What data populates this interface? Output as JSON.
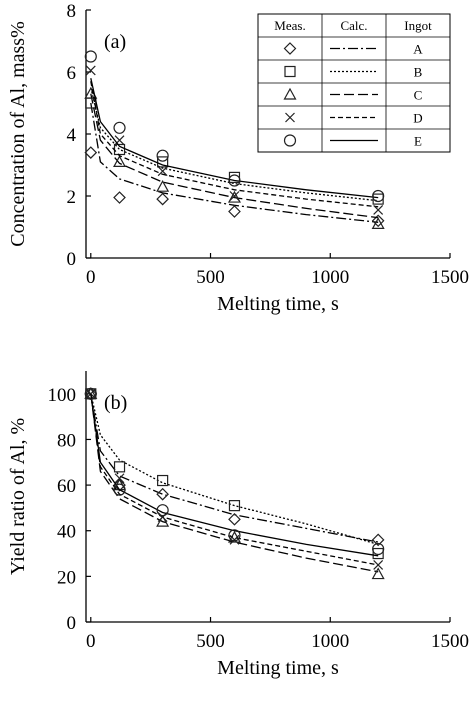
{
  "chart_data": [
    {
      "type": "scatter",
      "panel_label": "(a)",
      "xlabel": "Melting time, s",
      "ylabel": "Concentration of Al, mass%",
      "xlim": [
        -20,
        1500
      ],
      "ylim": [
        0,
        8
      ],
      "xticks": [
        "0",
        "500",
        "1000",
        "1500"
      ],
      "yticks": [
        "0",
        "2",
        "4",
        "6",
        "8"
      ],
      "grid": false,
      "legend": {
        "position": "top-right",
        "headers": [
          "Meas.",
          "Calc.",
          "Ingot"
        ],
        "rows": [
          {
            "marker": "diamond",
            "line": "dash-dot",
            "ingot": "A"
          },
          {
            "marker": "square",
            "line": "dotted",
            "ingot": "B"
          },
          {
            "marker": "triangle",
            "line": "long-dash",
            "ingot": "C"
          },
          {
            "marker": "cross",
            "line": "short-dash",
            "ingot": "D"
          },
          {
            "marker": "circle",
            "line": "solid",
            "ingot": "E"
          }
        ]
      },
      "series": [
        {
          "name": "A",
          "marker": "diamond",
          "line": "dash-dot",
          "measured": {
            "x": [
              0,
              120,
              300,
              600,
              1200
            ],
            "y": [
              3.4,
              1.95,
              1.9,
              1.5,
              1.2
            ]
          },
          "calculated": {
            "x": [
              0,
              40,
              120,
              300,
              600,
              900,
              1200
            ],
            "y": [
              5.0,
              3.1,
              2.55,
              2.1,
              1.7,
              1.4,
              1.15
            ]
          }
        },
        {
          "name": "B",
          "marker": "square",
          "line": "dotted",
          "measured": {
            "x": [
              0,
              120,
              300,
              600,
              1200
            ],
            "y": [
              5.0,
              3.5,
              3.1,
              2.6,
              1.9
            ]
          },
          "calculated": {
            "x": [
              0,
              40,
              120,
              300,
              600,
              900,
              1200
            ],
            "y": [
              5.5,
              4.2,
              3.5,
              2.9,
              2.4,
              2.1,
              1.85
            ]
          }
        },
        {
          "name": "C",
          "marker": "triangle",
          "line": "long-dash",
          "measured": {
            "x": [
              0,
              120,
              300,
              600,
              1200
            ],
            "y": [
              5.3,
              3.1,
              2.3,
              1.95,
              1.1
            ]
          },
          "calculated": {
            "x": [
              0,
              40,
              120,
              300,
              600,
              900,
              1200
            ],
            "y": [
              5.3,
              3.8,
              3.05,
              2.45,
              1.95,
              1.6,
              1.3
            ]
          }
        },
        {
          "name": "D",
          "marker": "cross",
          "line": "short-dash",
          "measured": {
            "x": [
              0,
              120,
              300,
              600,
              1200
            ],
            "y": [
              6.05,
              3.8,
              2.8,
              2.0,
              1.55
            ]
          },
          "calculated": {
            "x": [
              0,
              40,
              120,
              300,
              600,
              900,
              1200
            ],
            "y": [
              5.7,
              4.0,
              3.3,
              2.7,
              2.2,
              1.9,
              1.65
            ]
          }
        },
        {
          "name": "E",
          "marker": "circle",
          "line": "solid",
          "measured": {
            "x": [
              0,
              120,
              300,
              600,
              1200
            ],
            "y": [
              6.5,
              4.2,
              3.3,
              2.5,
              2.0
            ]
          },
          "calculated": {
            "x": [
              0,
              40,
              120,
              300,
              600,
              900,
              1200
            ],
            "y": [
              5.8,
              4.4,
              3.6,
              3.0,
              2.5,
              2.2,
              1.95
            ]
          }
        }
      ]
    },
    {
      "type": "scatter",
      "panel_label": "(b)",
      "xlabel": "Melting time, s",
      "ylabel": "Yield ratio of Al, %",
      "xlim": [
        -20,
        1500
      ],
      "ylim": [
        0,
        110
      ],
      "xticks": [
        "0",
        "500",
        "1000",
        "1500"
      ],
      "yticks": [
        "0",
        "20",
        "40",
        "60",
        "80",
        "100"
      ],
      "grid": false,
      "series": [
        {
          "name": "A",
          "marker": "diamond",
          "line": "dash-dot",
          "measured": {
            "x": [
              0,
              120,
              300,
              600,
              1200
            ],
            "y": [
              100,
              60,
              56,
              45,
              36
            ]
          },
          "calculated": {
            "x": [
              0,
              40,
              120,
              300,
              600,
              900,
              1200
            ],
            "y": [
              100,
              75,
              64,
              56,
              47,
              41,
              35
            ]
          }
        },
        {
          "name": "B",
          "marker": "square",
          "line": "dotted",
          "measured": {
            "x": [
              0,
              120,
              300,
              600,
              1200
            ],
            "y": [
              100,
              68,
              62,
              51,
              30
            ]
          },
          "calculated": {
            "x": [
              0,
              40,
              120,
              300,
              600,
              900,
              1200
            ],
            "y": [
              100,
              82,
              71,
              61,
              51,
              43,
              34
            ]
          }
        },
        {
          "name": "C",
          "marker": "triangle",
          "line": "long-dash",
          "measured": {
            "x": [
              0,
              120,
              300,
              600,
              1200
            ],
            "y": [
              100,
              60,
              44,
              37,
              21
            ]
          },
          "calculated": {
            "x": [
              0,
              40,
              120,
              300,
              600,
              900,
              1200
            ],
            "y": [
              100,
              66,
              54,
              44,
              35,
              28,
              22
            ]
          }
        },
        {
          "name": "D",
          "marker": "cross",
          "line": "short-dash",
          "measured": {
            "x": [
              0,
              120,
              300,
              600,
              1200
            ],
            "y": [
              100,
              63,
              46,
              36,
              25
            ]
          },
          "calculated": {
            "x": [
              0,
              40,
              120,
              300,
              600,
              900,
              1200
            ],
            "y": [
              100,
              68,
              56,
              46,
              37,
              31,
              25
            ]
          }
        },
        {
          "name": "E",
          "marker": "circle",
          "line": "solid",
          "measured": {
            "x": [
              0,
              120,
              300,
              600,
              1200
            ],
            "y": [
              100,
              58,
              49,
              38,
              32
            ]
          },
          "calculated": {
            "x": [
              0,
              40,
              120,
              300,
              600,
              900,
              1200
            ],
            "y": [
              100,
              70,
              58,
              48,
              40,
              34,
              29
            ]
          }
        }
      ]
    }
  ]
}
